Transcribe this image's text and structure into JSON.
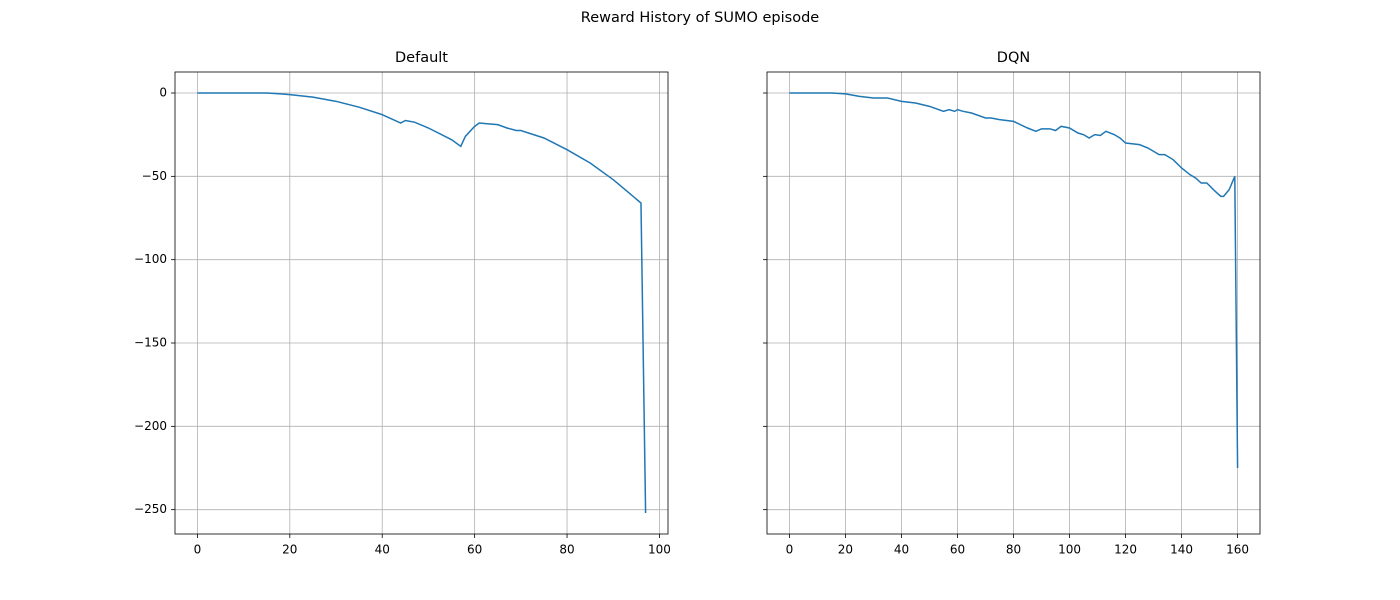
{
  "title": "Reward History of SUMO episode",
  "chart_data": [
    {
      "type": "line",
      "title": "Default",
      "grid": true,
      "x": [
        0,
        5,
        10,
        15,
        18,
        20,
        25,
        30,
        35,
        40,
        44,
        45,
        47,
        50,
        55,
        57,
        58,
        60,
        61,
        63,
        65,
        67,
        69,
        70,
        75,
        80,
        85,
        90,
        93,
        96,
        97
      ],
      "series": [
        {
          "color": "#1f77b4",
          "values": [
            0,
            0,
            0,
            0,
            -0.5,
            -1,
            -2.5,
            -5,
            -8.5,
            -13,
            -18,
            -16.5,
            -17.5,
            -21,
            -28,
            -32,
            -26,
            -20,
            -18,
            -18.5,
            -19,
            -21,
            -22.5,
            -22.5,
            -27,
            -34,
            -42,
            -52,
            -59,
            -66,
            -252
          ]
        }
      ],
      "xlim": [
        -4.85,
        101.85
      ],
      "xticks": [
        0,
        20,
        40,
        60,
        80,
        100
      ],
      "ylim": [
        -264.6,
        12.6
      ],
      "yticks": [
        {
          "value": 0,
          "label": "0"
        },
        {
          "value": -50,
          "label": "−50"
        },
        {
          "value": -100,
          "label": "−100"
        },
        {
          "value": -150,
          "label": "−150"
        },
        {
          "value": -200,
          "label": "−200"
        },
        {
          "value": -250,
          "label": "−250"
        }
      ]
    },
    {
      "type": "line",
      "title": "DQN",
      "grid": true,
      "x": [
        0,
        15,
        20,
        25,
        30,
        35,
        40,
        45,
        50,
        55,
        57,
        59,
        60,
        62,
        65,
        70,
        72,
        75,
        80,
        85,
        88,
        90,
        93,
        95,
        97,
        100,
        103,
        105,
        107,
        109,
        111,
        113,
        116,
        118,
        120,
        125,
        128,
        132,
        134,
        137,
        140,
        143,
        145,
        147,
        149,
        152,
        154,
        155,
        157,
        159,
        160
      ],
      "series": [
        {
          "color": "#1f77b4",
          "values": [
            0,
            0,
            -0.5,
            -2,
            -3,
            -3,
            -5,
            -6,
            -8,
            -11,
            -10,
            -11,
            -10,
            -11,
            -12,
            -15,
            -15,
            -16,
            -17,
            -21,
            -23,
            -21.5,
            -21.5,
            -22.5,
            -20,
            -21,
            -24,
            -25,
            -27,
            -25,
            -25.5,
            -23,
            -25,
            -27,
            -30,
            -31,
            -33,
            -37,
            -37,
            -40,
            -45,
            -49,
            -51,
            -54,
            -54,
            -59,
            -62,
            -62,
            -58,
            -50,
            -225
          ]
        }
      ],
      "xlim": [
        -8,
        168
      ],
      "xticks": [
        0,
        20,
        40,
        60,
        80,
        100,
        120,
        140,
        160
      ],
      "ylim": [
        -264.6,
        12.6
      ],
      "yticks": [
        0,
        -50,
        -100,
        -150,
        -200,
        -250
      ]
    }
  ]
}
